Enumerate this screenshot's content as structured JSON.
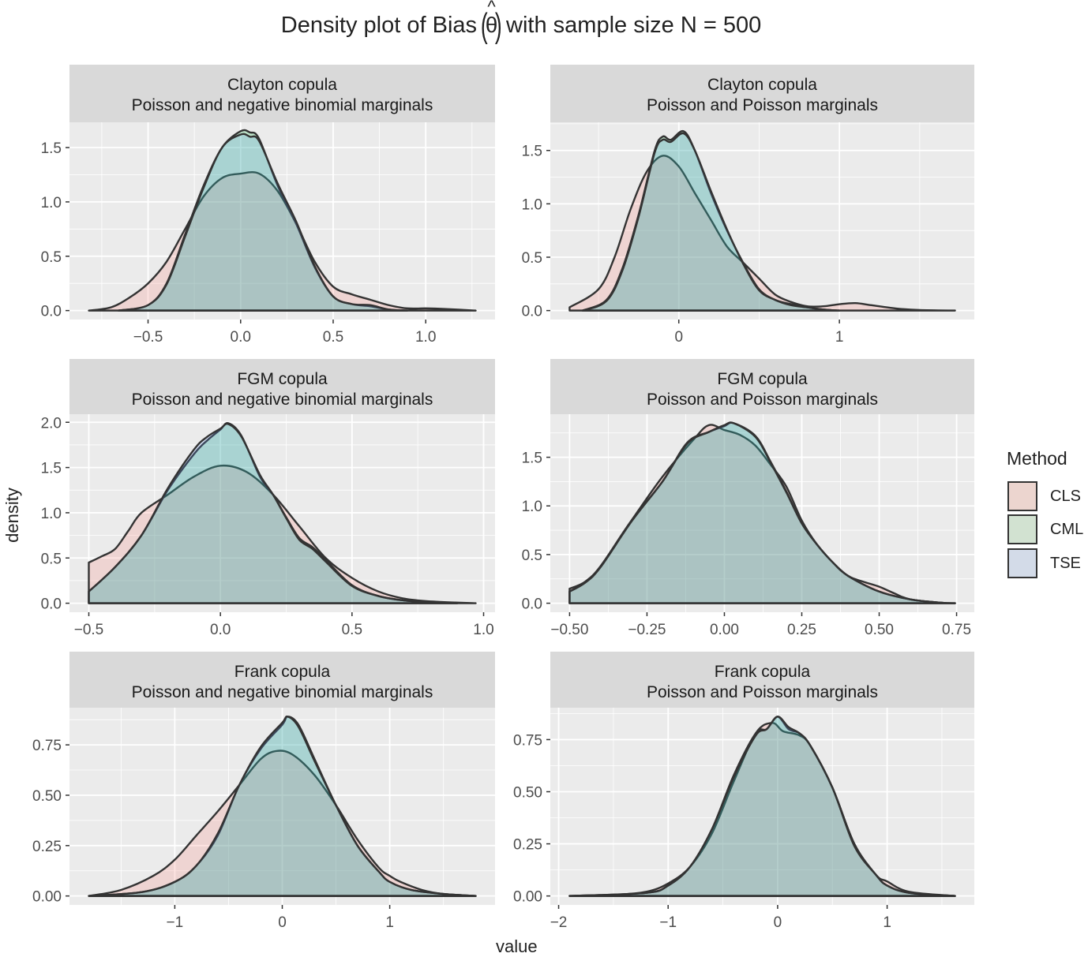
{
  "title": {
    "prefix": "Density plot of  Bias",
    "symbol": "θ",
    "hat": "^",
    "paren_open": "(",
    "paren_close": ")",
    "suffix": "with sample size N =  500"
  },
  "legend": {
    "title": "Method",
    "placement": "right",
    "items": [
      {
        "label": "CLS",
        "color": "#F8766D"
      },
      {
        "label": "CML",
        "color": "#00BA38"
      },
      {
        "label": "TSE",
        "color": "#619CFF"
      }
    ]
  },
  "xlabel": "value",
  "ylabel": "density",
  "chart_data": [
    {
      "type": "area",
      "strip": [
        "Clayton copula",
        "Poisson and negative binomial marginals"
      ],
      "xticks": [
        -0.5,
        0.0,
        0.5,
        1.0
      ],
      "xtick_labels": [
        "−0.5",
        "0.0",
        "0.5",
        "1.0"
      ],
      "yticks": [
        0.0,
        0.5,
        1.0,
        1.5
      ],
      "ytick_labels": [
        "0.0",
        "0.5",
        "1.0",
        "1.5"
      ],
      "grid": true,
      "series": [
        {
          "name": "CLS",
          "x": [
            -0.82,
            -0.7,
            -0.6,
            -0.5,
            -0.4,
            -0.3,
            -0.2,
            -0.1,
            0,
            0.1,
            0.2,
            0.3,
            0.4,
            0.5,
            0.6,
            0.7,
            0.8,
            0.9,
            1.0,
            1.1,
            1.27
          ],
          "y": [
            0,
            0.03,
            0.12,
            0.25,
            0.45,
            0.75,
            1.05,
            1.22,
            1.26,
            1.26,
            1.1,
            0.8,
            0.45,
            0.22,
            0.15,
            0.1,
            0.05,
            0.02,
            0.02,
            0.015,
            0
          ]
        },
        {
          "name": "CML",
          "x": [
            -0.66,
            -0.5,
            -0.4,
            -0.3,
            -0.2,
            -0.1,
            0,
            0.05,
            0.1,
            0.2,
            0.3,
            0.4,
            0.5,
            0.6,
            0.7,
            0.8,
            0.9
          ],
          "y": [
            0,
            0.05,
            0.25,
            0.7,
            1.15,
            1.5,
            1.65,
            1.64,
            1.58,
            1.15,
            0.8,
            0.4,
            0.13,
            0.06,
            0.04,
            0.01,
            0
          ]
        },
        {
          "name": "TSE",
          "x": [
            -0.66,
            -0.5,
            -0.4,
            -0.3,
            -0.2,
            -0.1,
            0,
            0.05,
            0.1,
            0.2,
            0.3,
            0.4,
            0.5,
            0.6,
            0.7,
            0.8,
            0.9
          ],
          "y": [
            0,
            0.05,
            0.24,
            0.68,
            1.13,
            1.5,
            1.62,
            1.6,
            1.56,
            1.17,
            0.82,
            0.41,
            0.13,
            0.06,
            0.05,
            0.01,
            0
          ]
        }
      ]
    },
    {
      "type": "area",
      "strip": [
        "Clayton copula",
        "Poisson and Poisson marginals"
      ],
      "xticks": [
        0,
        1
      ],
      "xtick_labels": [
        "0",
        "1"
      ],
      "yticks": [
        0.0,
        0.5,
        1.0,
        1.5
      ],
      "ytick_labels": [
        "0.0",
        "0.5",
        "1.0",
        "1.5"
      ],
      "grid": true,
      "series": [
        {
          "name": "CLS",
          "x": [
            -0.68,
            -0.5,
            -0.4,
            -0.3,
            -0.2,
            -0.1,
            0,
            0.1,
            0.2,
            0.3,
            0.4,
            0.5,
            0.6,
            0.7,
            0.8,
            0.9,
            1.0,
            1.1,
            1.2,
            1.35,
            1.5,
            1.72
          ],
          "y": [
            0.03,
            0.2,
            0.5,
            0.95,
            1.3,
            1.45,
            1.35,
            1.1,
            0.85,
            0.6,
            0.45,
            0.3,
            0.15,
            0.08,
            0.04,
            0.04,
            0.06,
            0.07,
            0.05,
            0.02,
            0.005,
            0
          ]
        },
        {
          "name": "CML",
          "x": [
            -0.6,
            -0.45,
            -0.35,
            -0.25,
            -0.15,
            -0.1,
            -0.05,
            0.03,
            0.1,
            0.2,
            0.3,
            0.4,
            0.5,
            0.6,
            0.7,
            0.8,
            0.9,
            1.0
          ],
          "y": [
            0,
            0.1,
            0.4,
            0.9,
            1.5,
            1.63,
            1.6,
            1.68,
            1.5,
            1.1,
            0.75,
            0.45,
            0.2,
            0.1,
            0.06,
            0.03,
            0.01,
            0
          ]
        },
        {
          "name": "TSE",
          "x": [
            -0.6,
            -0.45,
            -0.35,
            -0.25,
            -0.15,
            -0.1,
            -0.05,
            0.03,
            0.1,
            0.2,
            0.3,
            0.4,
            0.5,
            0.6,
            0.7,
            0.8,
            0.9,
            1.0
          ],
          "y": [
            0,
            0.09,
            0.38,
            0.88,
            1.48,
            1.6,
            1.58,
            1.66,
            1.5,
            1.12,
            0.76,
            0.44,
            0.19,
            0.1,
            0.05,
            0.03,
            0.01,
            0
          ]
        }
      ]
    },
    {
      "type": "area",
      "strip": [
        "FGM copula",
        "Poisson and negative binomial marginals"
      ],
      "xticks": [
        -0.5,
        0.0,
        0.5,
        1.0
      ],
      "xtick_labels": [
        "−0.5",
        "0.0",
        "0.5",
        "1.0"
      ],
      "yticks": [
        0.0,
        0.5,
        1.0,
        1.5,
        2.0
      ],
      "ytick_labels": [
        "0.0",
        "0.5",
        "1.0",
        "1.5",
        "2.0"
      ],
      "grid": true,
      "series": [
        {
          "name": "CLS",
          "x": [
            -0.5,
            -0.45,
            -0.4,
            -0.35,
            -0.3,
            -0.2,
            -0.1,
            0,
            0.1,
            0.2,
            0.3,
            0.4,
            0.5,
            0.6,
            0.7,
            0.8,
            0.97
          ],
          "y": [
            0.45,
            0.52,
            0.6,
            0.8,
            1.0,
            1.2,
            1.4,
            1.52,
            1.45,
            1.2,
            0.85,
            0.5,
            0.28,
            0.13,
            0.05,
            0.02,
            0
          ]
        },
        {
          "name": "CML",
          "x": [
            -0.5,
            -0.4,
            -0.3,
            -0.2,
            -0.1,
            -0.05,
            0,
            0.03,
            0.08,
            0.15,
            0.2,
            0.25,
            0.3,
            0.35,
            0.4,
            0.5,
            0.6,
            0.7,
            0.8,
            0.9
          ],
          "y": [
            0.13,
            0.4,
            0.75,
            1.25,
            1.65,
            1.8,
            1.92,
            1.99,
            1.85,
            1.4,
            1.2,
            0.95,
            0.72,
            0.62,
            0.48,
            0.2,
            0.08,
            0.03,
            0.01,
            0
          ]
        },
        {
          "name": "TSE",
          "x": [
            -0.5,
            -0.4,
            -0.3,
            -0.2,
            -0.1,
            -0.05,
            0,
            0.03,
            0.08,
            0.15,
            0.2,
            0.25,
            0.3,
            0.35,
            0.4,
            0.5,
            0.6,
            0.7,
            0.8,
            0.9
          ],
          "y": [
            0.13,
            0.4,
            0.75,
            1.27,
            1.7,
            1.84,
            1.93,
            1.98,
            1.84,
            1.42,
            1.2,
            0.94,
            0.7,
            0.6,
            0.46,
            0.19,
            0.08,
            0.03,
            0.01,
            0
          ]
        }
      ]
    },
    {
      "type": "area",
      "strip": [
        "FGM copula",
        "Poisson and Poisson marginals"
      ],
      "xticks": [
        -0.5,
        -0.25,
        0.0,
        0.25,
        0.5,
        0.75
      ],
      "xtick_labels": [
        "−0.50",
        "−0.25",
        "0.00",
        "0.25",
        "0.50",
        "0.75"
      ],
      "yticks": [
        0.0,
        0.5,
        1.0,
        1.5
      ],
      "ytick_labels": [
        "0.0",
        "0.5",
        "1.0",
        "1.5"
      ],
      "grid": true,
      "series": [
        {
          "name": "CLS",
          "x": [
            -0.5,
            -0.45,
            -0.4,
            -0.3,
            -0.2,
            -0.1,
            -0.05,
            0,
            0.05,
            0.1,
            0.15,
            0.2,
            0.25,
            0.3,
            0.35,
            0.4,
            0.45,
            0.5,
            0.55,
            0.6,
            0.7,
            0.745
          ],
          "y": [
            0.15,
            0.22,
            0.38,
            0.85,
            1.3,
            1.68,
            1.83,
            1.78,
            1.73,
            1.62,
            1.42,
            1.2,
            0.85,
            0.6,
            0.42,
            0.28,
            0.22,
            0.17,
            0.1,
            0.04,
            0.005,
            0
          ]
        },
        {
          "name": "CML",
          "x": [
            -0.5,
            -0.45,
            -0.4,
            -0.3,
            -0.2,
            -0.12,
            -0.05,
            0,
            0.03,
            0.1,
            0.15,
            0.2,
            0.25,
            0.3,
            0.35,
            0.4,
            0.5,
            0.6,
            0.7,
            0.745
          ],
          "y": [
            0.12,
            0.22,
            0.38,
            0.85,
            1.25,
            1.65,
            1.76,
            1.82,
            1.85,
            1.72,
            1.45,
            1.15,
            0.82,
            0.6,
            0.42,
            0.28,
            0.12,
            0.04,
            0.005,
            0
          ]
        },
        {
          "name": "TSE",
          "x": [
            -0.5,
            -0.45,
            -0.4,
            -0.3,
            -0.2,
            -0.12,
            -0.05,
            0,
            0.03,
            0.1,
            0.15,
            0.2,
            0.25,
            0.3,
            0.35,
            0.4,
            0.5,
            0.6,
            0.7,
            0.745
          ],
          "y": [
            0.12,
            0.21,
            0.37,
            0.84,
            1.25,
            1.64,
            1.76,
            1.83,
            1.85,
            1.71,
            1.44,
            1.14,
            0.82,
            0.6,
            0.42,
            0.28,
            0.12,
            0.04,
            0.005,
            0
          ]
        }
      ]
    },
    {
      "type": "area",
      "strip": [
        "Frank copula",
        "Poisson and negative binomial marginals"
      ],
      "xticks": [
        -1,
        0,
        1
      ],
      "xtick_labels": [
        "−1",
        "0",
        "1"
      ],
      "yticks": [
        0.0,
        0.25,
        0.5,
        0.75
      ],
      "ytick_labels": [
        "0.00",
        "0.25",
        "0.50",
        "0.75"
      ],
      "grid": true,
      "series": [
        {
          "name": "CLS",
          "x": [
            -1.8,
            -1.5,
            -1.2,
            -1.0,
            -0.8,
            -0.6,
            -0.4,
            -0.2,
            -0.05,
            0.1,
            0.3,
            0.5,
            0.7,
            0.9,
            1.0,
            1.1,
            1.3,
            1.5,
            1.8
          ],
          "y": [
            0,
            0.03,
            0.1,
            0.18,
            0.3,
            0.42,
            0.55,
            0.68,
            0.72,
            0.7,
            0.6,
            0.45,
            0.28,
            0.14,
            0.1,
            0.07,
            0.03,
            0.01,
            0
          ]
        },
        {
          "name": "CML",
          "x": [
            -1.8,
            -1.3,
            -1.0,
            -0.8,
            -0.6,
            -0.4,
            -0.2,
            0,
            0.05,
            0.15,
            0.3,
            0.5,
            0.7,
            0.9,
            1.0,
            1.2,
            1.5,
            1.8
          ],
          "y": [
            0,
            0.02,
            0.07,
            0.15,
            0.3,
            0.55,
            0.73,
            0.85,
            0.89,
            0.85,
            0.68,
            0.45,
            0.25,
            0.12,
            0.07,
            0.03,
            0.01,
            0
          ]
        },
        {
          "name": "TSE",
          "x": [
            -1.8,
            -1.3,
            -1.0,
            -0.8,
            -0.6,
            -0.4,
            -0.2,
            0,
            0.05,
            0.15,
            0.3,
            0.5,
            0.7,
            0.9,
            1.0,
            1.2,
            1.5,
            1.8
          ],
          "y": [
            0,
            0.02,
            0.07,
            0.15,
            0.31,
            0.55,
            0.74,
            0.86,
            0.89,
            0.84,
            0.67,
            0.45,
            0.25,
            0.12,
            0.07,
            0.03,
            0.01,
            0
          ]
        }
      ]
    },
    {
      "type": "area",
      "strip": [
        "Frank copula",
        "Poisson and Poisson marginals"
      ],
      "xticks": [
        -2,
        -1,
        0,
        1
      ],
      "xtick_labels": [
        "−2",
        "−1",
        "0",
        "1"
      ],
      "yticks": [
        0.0,
        0.25,
        0.5,
        0.75
      ],
      "ytick_labels": [
        "0.00",
        "0.25",
        "0.50",
        "0.75"
      ],
      "grid": true,
      "series": [
        {
          "name": "CLS",
          "x": [
            -1.9,
            -1.5,
            -1.2,
            -1.0,
            -0.8,
            -0.6,
            -0.4,
            -0.2,
            -0.05,
            0.05,
            0.2,
            0.3,
            0.5,
            0.7,
            0.9,
            1.0,
            1.2,
            1.62
          ],
          "y": [
            0,
            0.005,
            0.02,
            0.06,
            0.14,
            0.3,
            0.55,
            0.78,
            0.83,
            0.79,
            0.77,
            0.72,
            0.52,
            0.25,
            0.1,
            0.07,
            0.02,
            0
          ]
        },
        {
          "name": "CML",
          "x": [
            -1.9,
            -1.2,
            -1.0,
            -0.8,
            -0.6,
            -0.4,
            -0.2,
            -0.1,
            0,
            0.1,
            0.2,
            0.3,
            0.5,
            0.7,
            0.9,
            1.0,
            1.2,
            1.62
          ],
          "y": [
            0,
            0.015,
            0.05,
            0.14,
            0.32,
            0.58,
            0.78,
            0.8,
            0.86,
            0.8,
            0.78,
            0.72,
            0.52,
            0.25,
            0.1,
            0.05,
            0.015,
            0
          ]
        },
        {
          "name": "TSE",
          "x": [
            -1.9,
            -1.2,
            -1.0,
            -0.8,
            -0.6,
            -0.4,
            -0.2,
            -0.1,
            0,
            0.1,
            0.2,
            0.3,
            0.5,
            0.7,
            0.9,
            1.0,
            1.2,
            1.62
          ],
          "y": [
            0,
            0.015,
            0.05,
            0.14,
            0.32,
            0.57,
            0.77,
            0.8,
            0.86,
            0.81,
            0.78,
            0.72,
            0.52,
            0.24,
            0.1,
            0.05,
            0.015,
            0
          ]
        }
      ]
    }
  ]
}
